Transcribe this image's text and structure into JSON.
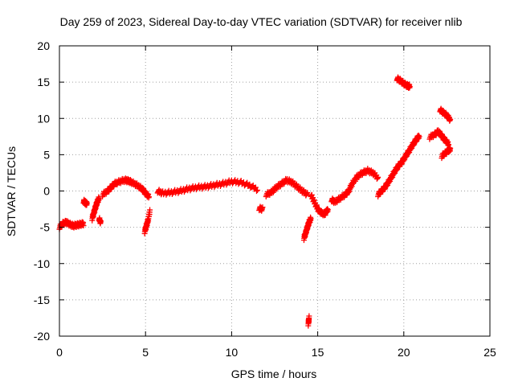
{
  "chart_data": {
    "type": "scatter",
    "title": "Day 259 of 2023, Sidereal Day-to-day VTEC variation (SDTVAR) for receiver nlib",
    "xlabel": "GPS time / hours",
    "ylabel": "SDTVAR / TECUs",
    "xlim": [
      0,
      25
    ],
    "ylim": [
      -20,
      20
    ],
    "xticks": [
      0,
      5,
      10,
      15,
      20,
      25
    ],
    "yticks": [
      -20,
      -15,
      -10,
      -5,
      0,
      5,
      10,
      15,
      20
    ],
    "grid": true,
    "marker": "+",
    "color": "#ff0000",
    "series": [
      {
        "name": "SDTVAR",
        "segments": [
          {
            "x": [
              0.0,
              0.2,
              0.4,
              0.6,
              0.8,
              1.0,
              1.2,
              1.4
            ],
            "y": [
              -5.0,
              -4.5,
              -4.3,
              -4.6,
              -4.8,
              -4.7,
              -4.6,
              -4.5
            ]
          },
          {
            "x": [
              1.4,
              1.5,
              1.6
            ],
            "y": [
              -1.4,
              -1.6,
              -1.8
            ]
          },
          {
            "x": [
              1.9,
              2.0,
              2.1,
              2.2,
              2.3
            ],
            "y": [
              -3.8,
              -3.0,
              -2.2,
              -1.5,
              -1.0
            ]
          },
          {
            "x": [
              2.3,
              2.4
            ],
            "y": [
              -3.8,
              -4.4
            ]
          },
          {
            "x": [
              2.5,
              2.8,
              3.0,
              3.2,
              3.5,
              3.8,
              4.0,
              4.2,
              4.5,
              4.8,
              5.0,
              5.2
            ],
            "y": [
              -0.5,
              0.0,
              0.5,
              1.0,
              1.3,
              1.5,
              1.4,
              1.2,
              0.8,
              0.3,
              -0.3,
              -0.8
            ]
          },
          {
            "x": [
              4.95,
              5.05,
              5.15,
              5.25
            ],
            "y": [
              -5.6,
              -4.8,
              -4.0,
              -2.7
            ]
          },
          {
            "x": [
              5.7,
              6.0,
              6.5,
              7.0,
              7.5,
              8.0,
              8.5,
              9.0,
              9.5,
              10.0,
              10.5,
              11.0,
              11.5
            ],
            "y": [
              0.0,
              -0.3,
              -0.2,
              0.0,
              0.3,
              0.5,
              0.6,
              0.8,
              1.0,
              1.3,
              1.2,
              0.8,
              0.2
            ]
          },
          {
            "x": [
              11.6,
              11.8
            ],
            "y": [
              -2.4,
              -2.5
            ]
          },
          {
            "x": [
              12.0,
              12.3,
              12.6,
              12.9,
              13.2,
              13.5,
              13.8,
              14.1,
              14.4
            ],
            "y": [
              -0.5,
              -0.2,
              0.5,
              1.0,
              1.5,
              1.2,
              0.6,
              0.0,
              -0.5
            ]
          },
          {
            "x": [
              14.2,
              14.3,
              14.4,
              14.5,
              14.6
            ],
            "y": [
              -6.5,
              -5.8,
              -5.0,
              -4.3,
              -3.8
            ]
          },
          {
            "x": [
              14.45,
              14.5
            ],
            "y": [
              -18.3,
              -17.5
            ]
          },
          {
            "x": [
              14.6,
              14.8,
              15.0,
              15.2,
              15.4,
              15.6
            ],
            "y": [
              -0.5,
              -1.5,
              -2.5,
              -3.0,
              -3.2,
              -2.5
            ]
          },
          {
            "x": [
              15.8,
              16.0,
              16.3,
              16.6,
              16.8,
              17.0,
              17.3,
              17.6,
              17.9,
              18.2,
              18.5
            ],
            "y": [
              -1.2,
              -1.5,
              -1.0,
              -0.5,
              0.0,
              1.0,
              2.0,
              2.5,
              2.8,
              2.5,
              1.8
            ]
          },
          {
            "x": [
              18.5,
              18.7,
              18.9,
              19.1,
              19.3,
              19.5,
              19.7,
              19.9,
              20.1,
              20.3,
              20.5,
              20.7,
              20.9
            ],
            "y": [
              -0.5,
              0.0,
              0.5,
              1.2,
              2.0,
              2.8,
              3.5,
              4.0,
              4.8,
              5.5,
              6.3,
              7.0,
              7.6
            ]
          },
          {
            "x": [
              19.6,
              19.8,
              20.0,
              20.2,
              20.35
            ],
            "y": [
              15.5,
              15.2,
              14.8,
              14.5,
              14.4
            ]
          },
          {
            "x": [
              21.5,
              21.8,
              22.0,
              22.2,
              22.4,
              22.6
            ],
            "y": [
              7.4,
              7.8,
              8.2,
              7.6,
              7.0,
              6.5
            ]
          },
          {
            "x": [
              22.1,
              22.3,
              22.5,
              22.7
            ],
            "y": [
              11.2,
              10.8,
              10.4,
              9.8
            ]
          },
          {
            "x": [
              22.2,
              22.4,
              22.6,
              22.7
            ],
            "y": [
              4.8,
              5.2,
              5.6,
              5.8
            ]
          }
        ]
      }
    ]
  }
}
